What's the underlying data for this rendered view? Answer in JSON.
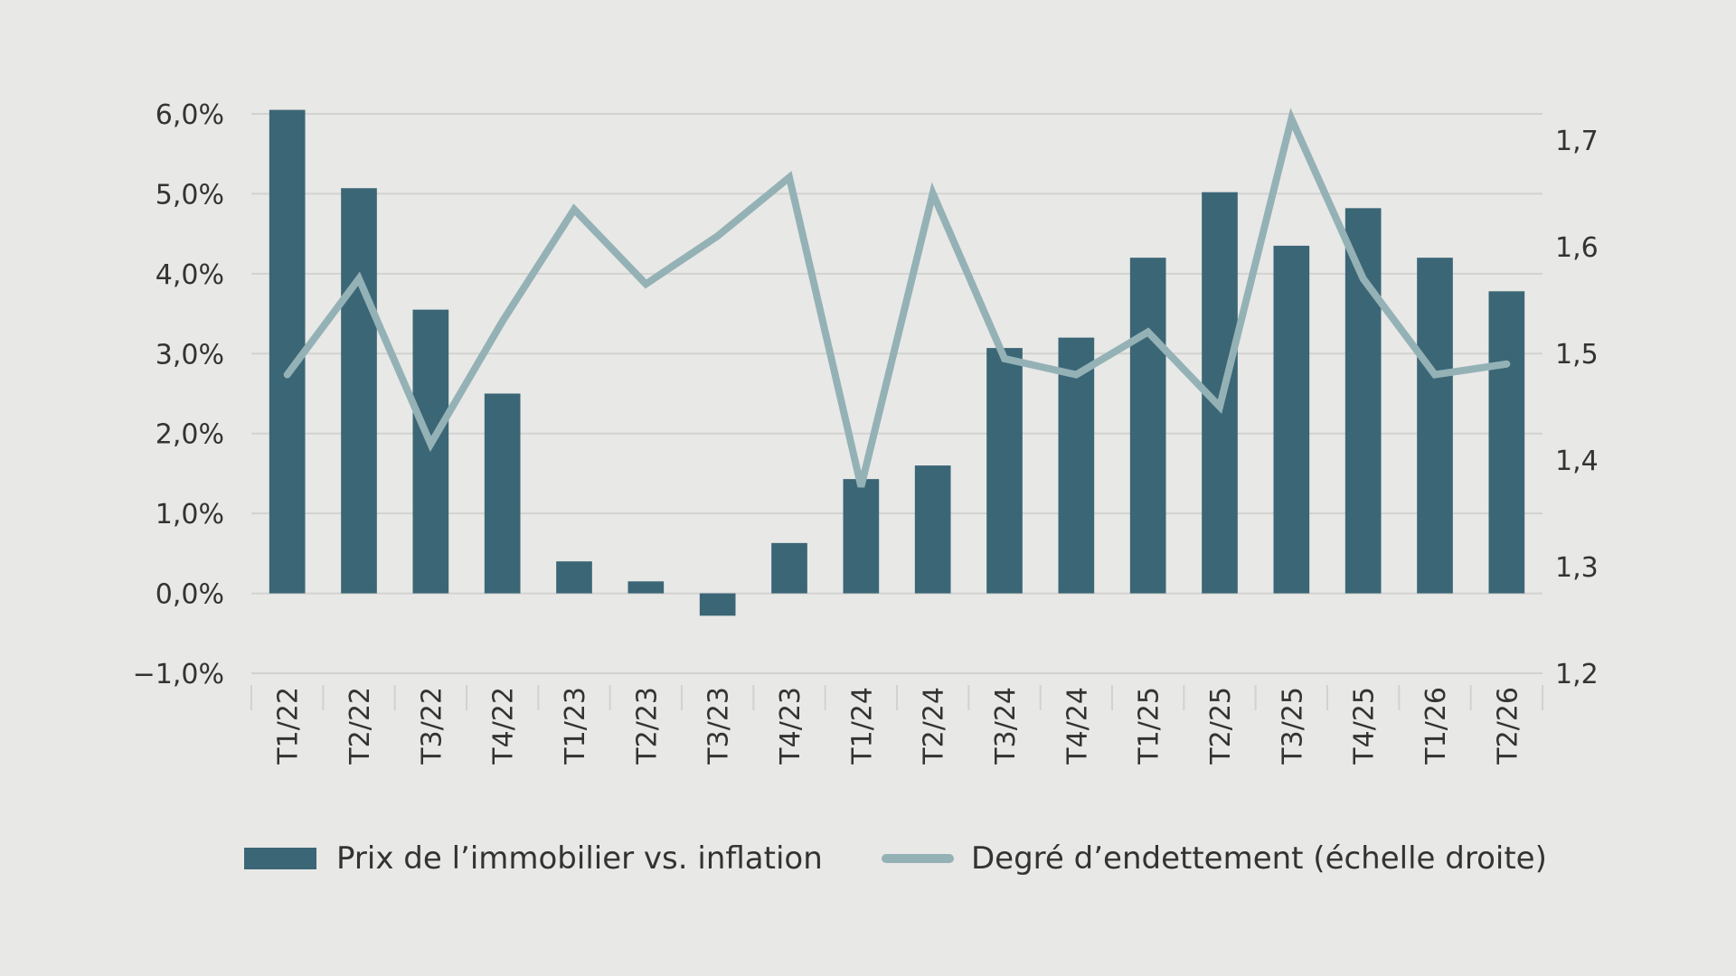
{
  "chart_data": {
    "type": "bar",
    "categories": [
      "T1/22",
      "T2/22",
      "T3/22",
      "T4/22",
      "T1/23",
      "T2/23",
      "T3/23",
      "T4/23",
      "T1/24",
      "T2/24",
      "T3/24",
      "T4/24",
      "T1/25",
      "T2/25",
      "T3/25",
      "T4/25",
      "T1/26",
      "T2/26"
    ],
    "series": [
      {
        "name": "Prix de l’immobilier vs. inflation",
        "type": "bar",
        "axis": "left",
        "values": [
          6.05,
          5.07,
          3.55,
          2.5,
          0.4,
          0.15,
          -0.28,
          0.63,
          1.43,
          1.6,
          3.07,
          3.2,
          4.2,
          5.02,
          4.35,
          4.82,
          4.2,
          3.78
        ]
      },
      {
        "name": "Degré d’endettement (échelle droite)",
        "type": "line",
        "axis": "right",
        "values": [
          1.48,
          1.57,
          1.415,
          1.53,
          1.635,
          1.565,
          1.61,
          1.665,
          1.375,
          1.65,
          1.495,
          1.48,
          1.52,
          1.45,
          1.72,
          1.57,
          1.48,
          1.49
        ]
      }
    ],
    "left_axis": {
      "ylim": [
        -1.0,
        6.0
      ],
      "ticks": [
        6.0,
        5.0,
        4.0,
        3.0,
        2.0,
        1.0,
        0.0,
        -1.0
      ],
      "tick_labels": [
        "6,0%",
        "5,0%",
        "4,0%",
        "3,0%",
        "2,0%",
        "1,0%",
        "0,0%",
        "−1,0%"
      ]
    },
    "right_axis": {
      "ylim": [
        1.2,
        1.75
      ],
      "ticks": [
        1.7,
        1.6,
        1.5,
        1.4,
        1.3,
        1.2
      ],
      "tick_labels": [
        "1,7",
        "1,6",
        "1,5",
        "1,4",
        "1,3",
        "1,2"
      ]
    },
    "grid": true,
    "legend_position": "bottom",
    "colors": {
      "bar": "#3b6676",
      "line": "#94b2b6",
      "grid": "#d2d2d0",
      "background": "#e8e8e6"
    }
  }
}
